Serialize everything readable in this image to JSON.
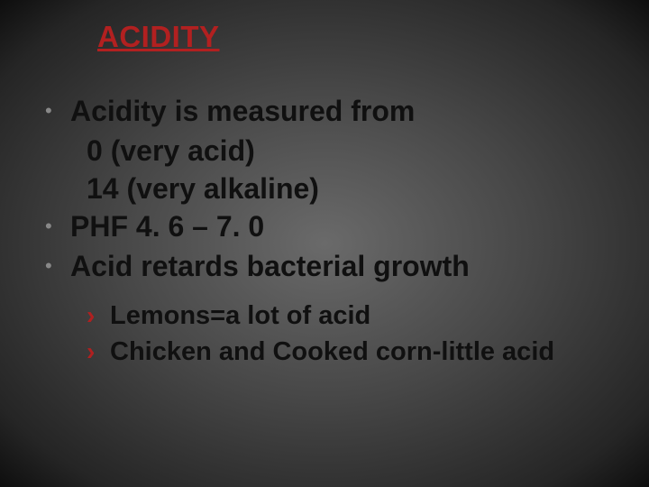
{
  "slide": {
    "title": "ACIDITY",
    "title_color": "#b22020",
    "background": {
      "type": "radial-gradient",
      "stops": [
        "#6a6a6a",
        "#474747",
        "#252525",
        "#0e0e0e"
      ]
    },
    "body_text_color": "#101010",
    "bullet_dot_color": "#888888",
    "sub_marker_color": "#b02020",
    "title_fontsize": 33,
    "bullet_fontsize": 32,
    "sub_fontsize": 29,
    "bullets": [
      {
        "text": "Acidity is measured from",
        "continuations": [
          "0 (very acid)",
          "14 (very alkaline)"
        ]
      },
      {
        "text": "PHF 4. 6 – 7. 0"
      },
      {
        "text": "Acid retards bacterial growth"
      }
    ],
    "sub_bullets": [
      "Lemons=a lot of acid",
      "Chicken and Cooked corn-little acid"
    ]
  }
}
